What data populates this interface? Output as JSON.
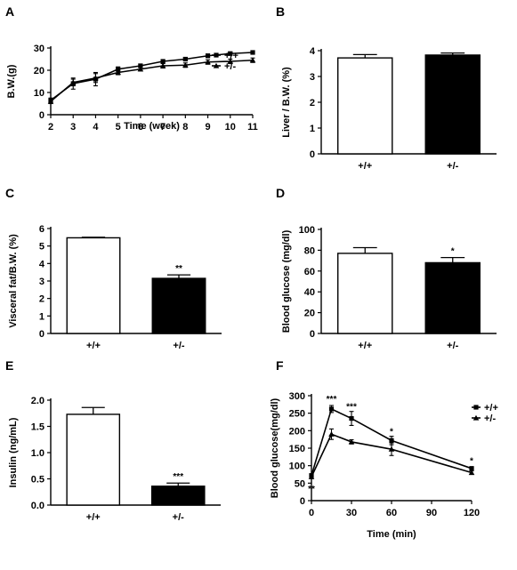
{
  "chart_data": [
    {
      "panel": "A",
      "type": "line",
      "xlabel": "Time (week)",
      "ylabel": "B.W.(g)",
      "xlim": [
        2,
        11
      ],
      "ylim": [
        0,
        30
      ],
      "x_ticks": [
        2,
        3,
        4,
        5,
        6,
        7,
        8,
        9,
        10,
        11
      ],
      "y_ticks": [
        0,
        10,
        20,
        30
      ],
      "legend_position": "top-right",
      "series": [
        {
          "name": "+/+",
          "marker": "square",
          "x": [
            2,
            3,
            4,
            5,
            6,
            7,
            8,
            9,
            10,
            11
          ],
          "values": [
            6.5,
            14,
            16,
            20.5,
            22,
            24,
            25,
            26.5,
            27.5,
            28
          ],
          "errors": [
            1,
            2.5,
            3,
            1,
            0.8,
            0.7,
            0.7,
            0.8,
            0.7,
            0.6
          ]
        },
        {
          "name": "+/-",
          "marker": "triangle",
          "x": [
            2,
            3,
            4,
            5,
            6,
            7,
            8,
            9,
            10,
            11
          ],
          "values": [
            6,
            14.5,
            16.5,
            19,
            20.5,
            22,
            22.3,
            23.7,
            24,
            24.5
          ],
          "errors": [
            1,
            1.5,
            2,
            1,
            0.8,
            1,
            1,
            1,
            1,
            1
          ]
        }
      ]
    },
    {
      "panel": "B",
      "type": "bar",
      "ylabel": "Liver / B.W. (%)",
      "ylim": [
        0,
        4
      ],
      "y_ticks": [
        0,
        1,
        2,
        3,
        4
      ],
      "categories": [
        "+/+",
        "+/-"
      ],
      "values": [
        3.72,
        3.83
      ],
      "errors": [
        0.13,
        0.08
      ],
      "fills": [
        "#ffffff",
        "#000000"
      ],
      "significance": [
        "",
        ""
      ]
    },
    {
      "panel": "C",
      "type": "bar",
      "ylabel": "Visceral fat/B.W. (%)",
      "ylim": [
        0,
        6
      ],
      "y_ticks": [
        0,
        1,
        2,
        3,
        4,
        5,
        6
      ],
      "categories": [
        "+/+",
        "+/-"
      ],
      "values": [
        5.47,
        3.15
      ],
      "errors": [
        0.03,
        0.2
      ],
      "fills": [
        "#ffffff",
        "#000000"
      ],
      "significance": [
        "",
        "**"
      ]
    },
    {
      "panel": "D",
      "type": "bar",
      "ylabel": "Blood glucose (mg/dl)",
      "ylim": [
        0,
        100
      ],
      "y_ticks": [
        0,
        20,
        40,
        60,
        80,
        100
      ],
      "categories": [
        "+/+",
        "+/-"
      ],
      "values": [
        77,
        68
      ],
      "errors": [
        5.5,
        5
      ],
      "fills": [
        "#ffffff",
        "#000000"
      ],
      "significance": [
        "",
        "*"
      ]
    },
    {
      "panel": "E",
      "type": "bar",
      "ylabel": "Insulin (ng/mL)",
      "ylim": [
        0,
        2.0
      ],
      "y_ticks": [
        "0.0",
        "0.5",
        "1.0",
        "1.5",
        "2.0"
      ],
      "categories": [
        "+/+",
        "+/-"
      ],
      "values": [
        1.73,
        0.36
      ],
      "errors": [
        0.13,
        0.06
      ],
      "fills": [
        "#ffffff",
        "#000000"
      ],
      "significance": [
        "",
        "***"
      ]
    },
    {
      "panel": "F",
      "type": "line",
      "xlabel": "Time (min)",
      "ylabel": "Blood glucose(mg/dl)",
      "xlim": [
        0,
        120
      ],
      "ylim": [
        0,
        300
      ],
      "x_ticks": [
        0,
        30,
        60,
        90,
        120
      ],
      "y_ticks": [
        0,
        50,
        100,
        150,
        200,
        250,
        300
      ],
      "legend_position": "top-right",
      "series": [
        {
          "name": "+/+",
          "marker": "square",
          "x": [
            0,
            15,
            30,
            60,
            120
          ],
          "values": [
            72,
            262,
            235,
            172,
            92
          ],
          "errors": [
            4,
            10,
            20,
            12,
            5
          ]
        },
        {
          "name": "+/-",
          "marker": "triangle",
          "x": [
            0,
            15,
            30,
            60,
            120
          ],
          "values": [
            68,
            190,
            168,
            147,
            80
          ],
          "errors": [
            4,
            15,
            6,
            18,
            5
          ]
        }
      ],
      "significance": [
        {
          "x": 0,
          "value": 25,
          "text": "**"
        },
        {
          "x": 15,
          "value": 282,
          "text": "***"
        },
        {
          "x": 30,
          "value": 260,
          "text": "***"
        },
        {
          "x": 60,
          "value": 190,
          "text": "*"
        },
        {
          "x": 120,
          "value": 105,
          "text": "*"
        }
      ]
    }
  ]
}
